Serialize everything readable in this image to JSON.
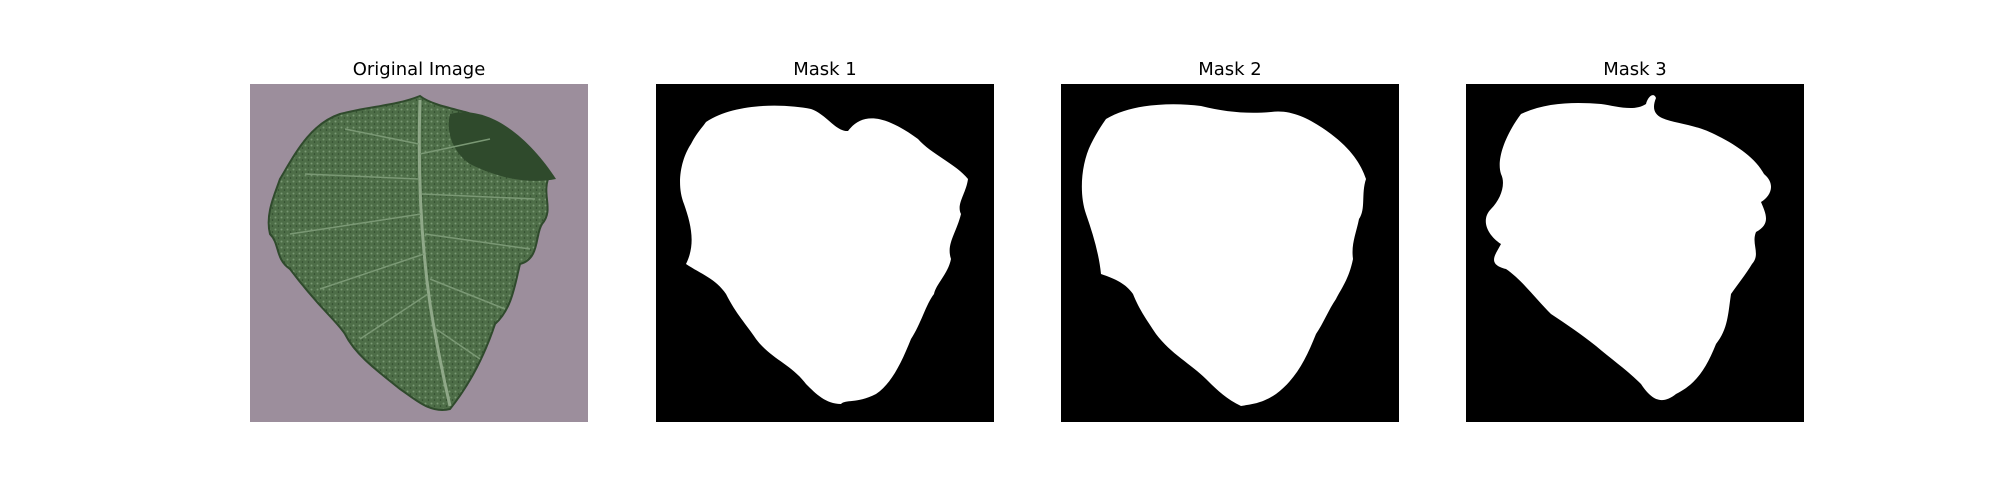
{
  "panels": [
    {
      "title": "Original Image",
      "kind": "photo",
      "subject_icon": "leaf-photo-icon"
    },
    {
      "title": "Mask 1",
      "kind": "mask",
      "subject_icon": "leaf-mask-icon"
    },
    {
      "title": "Mask 2",
      "kind": "mask",
      "subject_icon": "leaf-mask-icon"
    },
    {
      "title": "Mask 3",
      "kind": "mask",
      "subject_icon": "leaf-mask-icon"
    }
  ],
  "colors": {
    "photo_background": "#9c8e9c",
    "leaf_dark": "#2f4a2c",
    "leaf_mid": "#4e6e48",
    "leaf_light": "#7a9874",
    "mask_background": "#000000",
    "mask_foreground": "#ffffff"
  }
}
